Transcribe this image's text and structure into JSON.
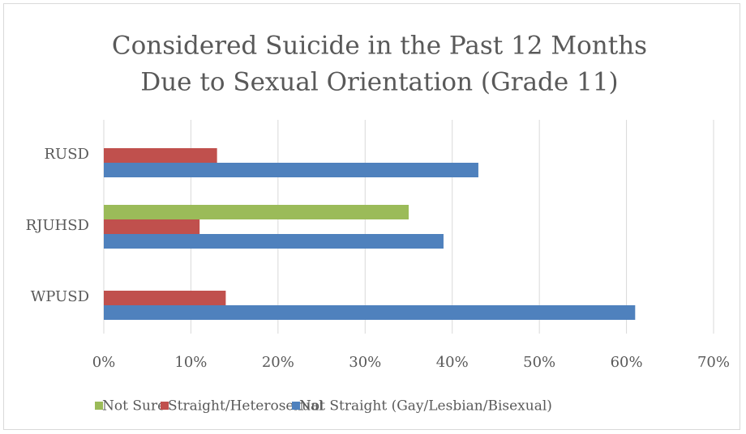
{
  "chart_data": {
    "type": "hbar",
    "title": [
      "Considered Suicide in the Past 12 Months",
      "Due to Sexual Orientation (Grade 11)"
    ],
    "categories": [
      "RUSD",
      "RJUHSD",
      "WPUSD"
    ],
    "series": [
      {
        "name": "Not Sure",
        "color": "#9bbb59",
        "values": [
          null,
          35,
          null
        ]
      },
      {
        "name": "Straight/Heterosexual",
        "color": "#c0504d",
        "values": [
          13,
          11,
          14
        ]
      },
      {
        "name": "Not Straight (Gay/Lesbian/Bisexual)",
        "color": "#4f81bd",
        "values": [
          43,
          39,
          61
        ]
      }
    ],
    "xlim": [
      0,
      70
    ],
    "xticks": [
      {
        "value": 0,
        "label": "0%"
      },
      {
        "value": 10,
        "label": "10%"
      },
      {
        "value": 20,
        "label": "20%"
      },
      {
        "value": 30,
        "label": "30%"
      },
      {
        "value": 40,
        "label": "40%"
      },
      {
        "value": 50,
        "label": "50%"
      },
      {
        "value": 60,
        "label": "60%"
      },
      {
        "value": 70,
        "label": "70%"
      }
    ],
    "grid": true,
    "legend": "bottom"
  }
}
